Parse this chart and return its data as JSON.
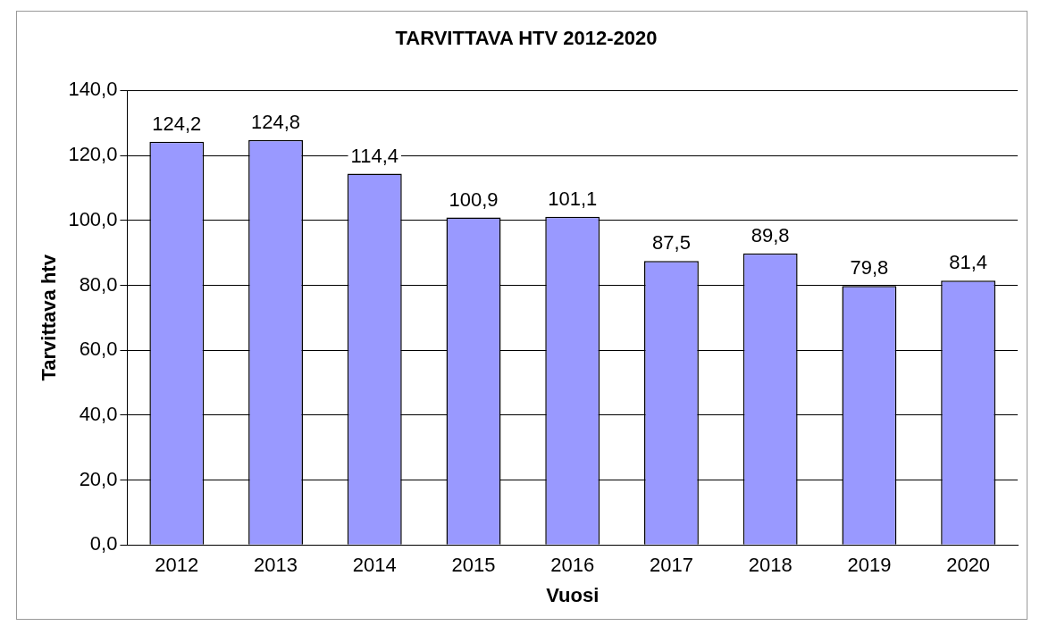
{
  "chart_data": {
    "type": "bar",
    "title": "TARVITTAVA HTV 2012-2020",
    "xlabel": "Vuosi",
    "ylabel": "Tarvittava htv",
    "categories": [
      "2012",
      "2013",
      "2014",
      "2015",
      "2016",
      "2017",
      "2018",
      "2019",
      "2020"
    ],
    "values": [
      124.2,
      124.8,
      114.4,
      100.9,
      101.1,
      87.5,
      89.8,
      79.8,
      81.4
    ],
    "value_labels": [
      "124,2",
      "124,8",
      "114,4",
      "100,9",
      "101,1",
      "87,5",
      "89,8",
      "79,8",
      "81,4"
    ],
    "color": "#9999ff",
    "ylim": [
      0,
      140
    ],
    "yticks": [
      {
        "value": 0,
        "label": "0,0"
      },
      {
        "value": 20,
        "label": "20,0"
      },
      {
        "value": 40,
        "label": "40,0"
      },
      {
        "value": 60,
        "label": "60,0"
      },
      {
        "value": 80,
        "label": "80,0"
      },
      {
        "value": 100,
        "label": "100,0"
      },
      {
        "value": 120,
        "label": "120,0"
      },
      {
        "value": 140,
        "label": "140,0"
      }
    ],
    "grid": "y",
    "legend": false
  }
}
